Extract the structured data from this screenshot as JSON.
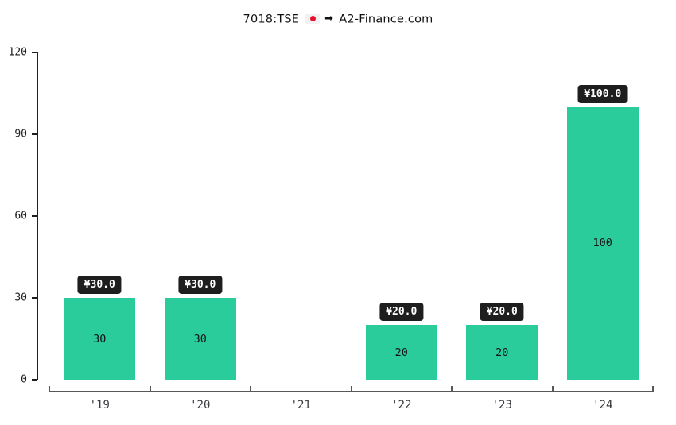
{
  "title": {
    "symbol": "7018:TSE",
    "site": "A2-Finance.com",
    "arrow_icon": "➡",
    "flag_icon": "japan-flag",
    "flag_color": "#e8112d"
  },
  "chart_data": {
    "type": "bar",
    "title": "7018:TSE ➡ A2-Finance.com",
    "categories": [
      "'19",
      "'20",
      "'21",
      "'22",
      "'23",
      "'24"
    ],
    "values": [
      30,
      30,
      null,
      20,
      20,
      100
    ],
    "bar_labels": [
      "¥30.0",
      "¥30.0",
      null,
      "¥20.0",
      "¥20.0",
      "¥100.0"
    ],
    "inner_labels": [
      "30",
      "30",
      null,
      "20",
      "20",
      "100"
    ],
    "xlabel": "",
    "ylabel": "",
    "ylim": [
      0,
      120
    ],
    "yticks": [
      0,
      30,
      60,
      90,
      120
    ],
    "grid": false,
    "legend": null,
    "colors": {
      "bar": "#2acc9b",
      "bar_text": "#141414",
      "badge_bg": "#1e1e1e",
      "badge_text": "#ffffff",
      "y_axis": "#1f1f1f",
      "x_axis": "#57585c"
    }
  }
}
